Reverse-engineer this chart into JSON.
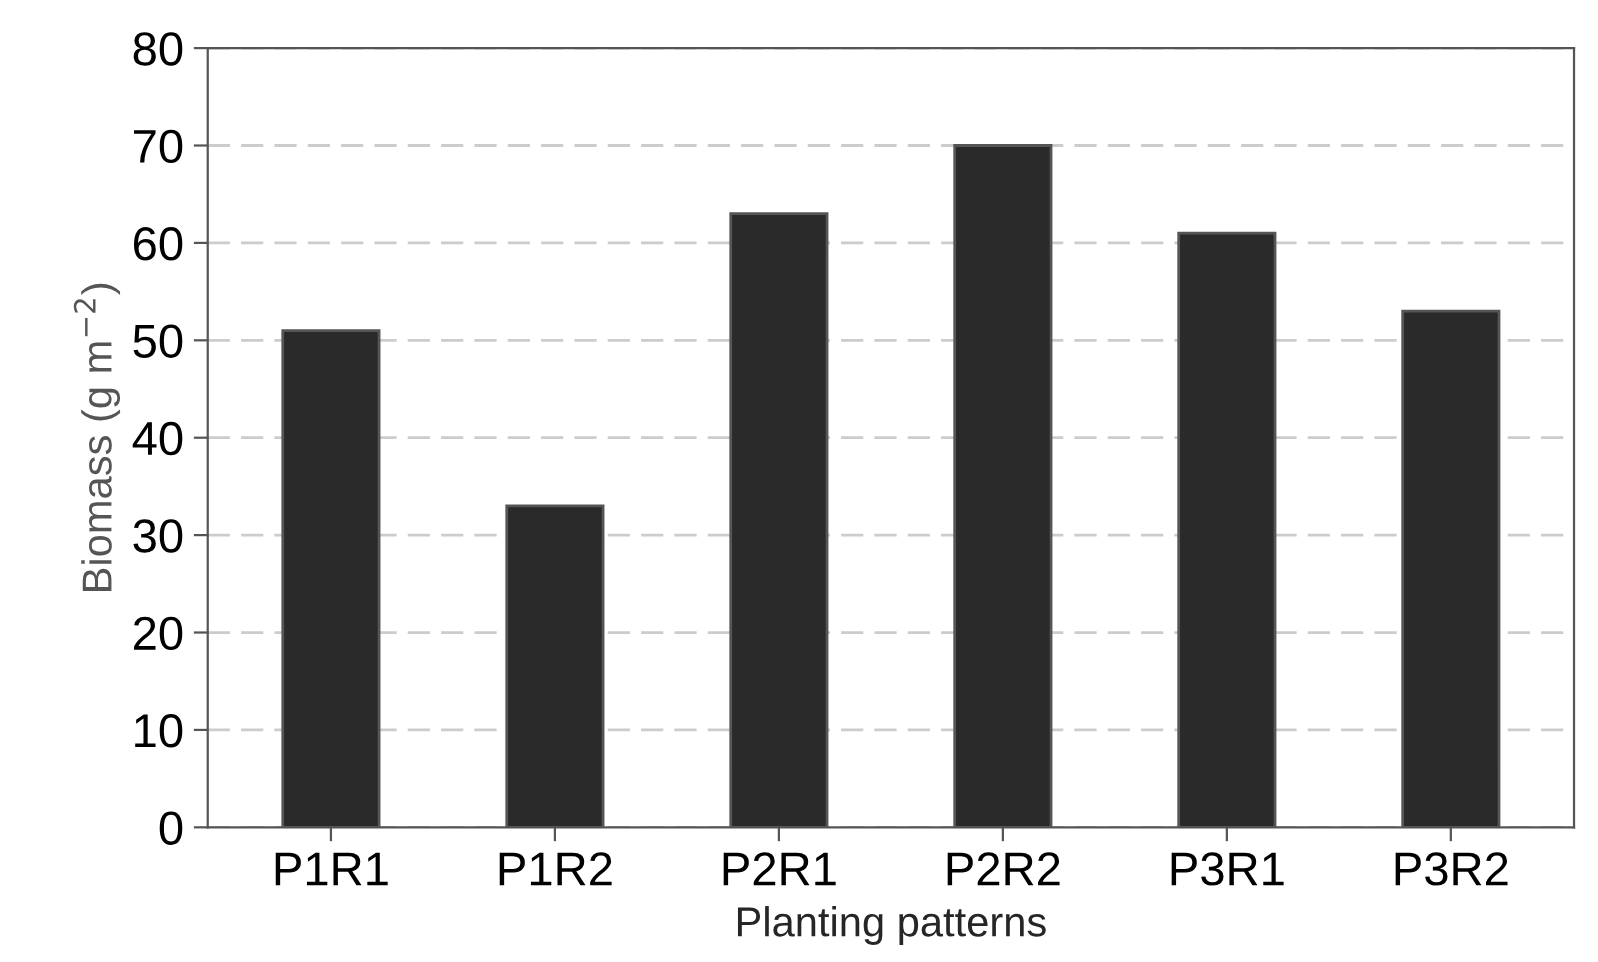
{
  "chart_data": {
    "type": "bar",
    "xlabel": "Planting patterns",
    "ylabel": "Biomass (g m$^{−2}$)",
    "categories": [
      "P1R1",
      "P1R2",
      "P2R1",
      "P2R2",
      "P3R1",
      "P3R2"
    ],
    "values": [
      51,
      33,
      63,
      70,
      61,
      53
    ],
    "color": "#2a2a2a",
    "ylim": [
      0,
      80
    ],
    "yticks": [
      0,
      10,
      20,
      30,
      40,
      50,
      60,
      70,
      80
    ],
    "grid": "y"
  }
}
